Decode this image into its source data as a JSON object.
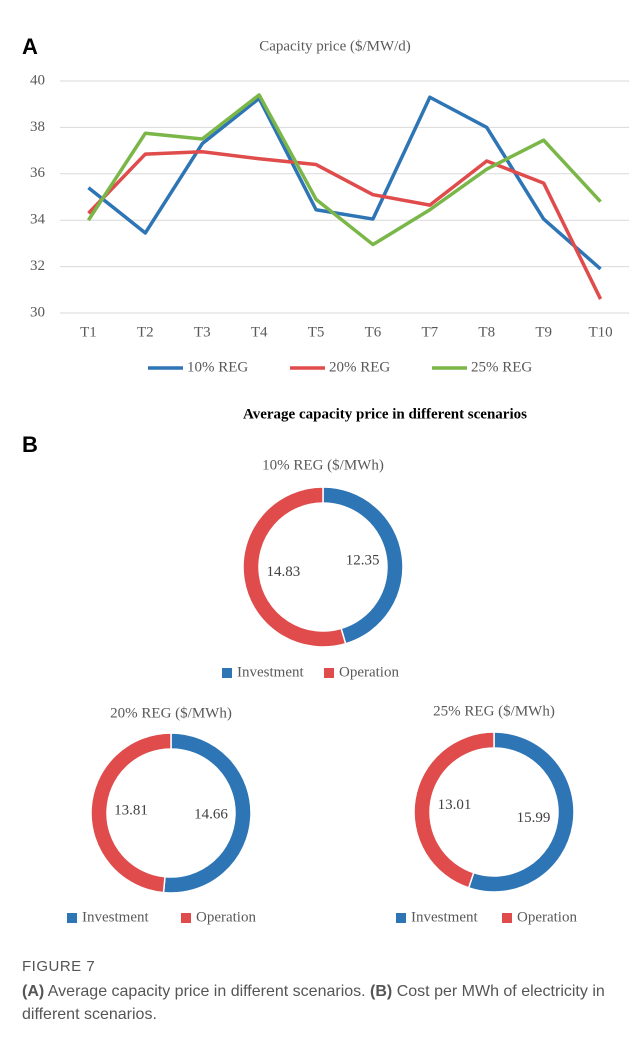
{
  "panels": [
    "A",
    "B"
  ],
  "caption": {
    "label": "FIGURE 7",
    "parts": [
      "(A)",
      "Average capacity price in different scenarios.",
      "(B)",
      "Cost per MWh of electricity in different scenarios."
    ]
  },
  "chart_data": [
    {
      "type": "line",
      "title": "Capacity price ($/MW/d)",
      "subtitle": "Average capacity price in different scenarios",
      "categories": [
        "T1",
        "T2",
        "T3",
        "T4",
        "T5",
        "T6",
        "T7",
        "T8",
        "T9",
        "T10"
      ],
      "series": [
        {
          "name": "10% REG",
          "color": "#2e75b6",
          "values": [
            35.4,
            33.45,
            37.3,
            39.25,
            34.45,
            34.05,
            39.3,
            38.0,
            34.05,
            31.9
          ]
        },
        {
          "name": "20% REG",
          "color": "#e04b4b",
          "values": [
            34.3,
            36.85,
            36.95,
            36.65,
            36.4,
            35.1,
            34.65,
            36.55,
            35.6,
            30.6
          ]
        },
        {
          "name": "25% REG",
          "color": "#7ab648",
          "values": [
            34.0,
            37.75,
            37.5,
            39.4,
            34.9,
            32.95,
            34.45,
            36.2,
            37.45,
            34.8
          ]
        }
      ],
      "ylim": [
        30,
        40
      ],
      "yticks": [
        30,
        32,
        34,
        36,
        38,
        40
      ],
      "grid": true,
      "legend": "bottom"
    },
    {
      "type": "donut",
      "title": "10% REG ($/MWh)",
      "categories": [
        "Investment",
        "Operation"
      ],
      "values": [
        12.35,
        14.83
      ],
      "colors": [
        "#2e75b6",
        "#e04b4b"
      ],
      "legend": "bottom"
    },
    {
      "type": "donut",
      "title": "20% REG ($/MWh)",
      "categories": [
        "Investment",
        "Operation"
      ],
      "values": [
        14.66,
        13.81
      ],
      "colors": [
        "#2e75b6",
        "#e04b4b"
      ],
      "legend": "bottom"
    },
    {
      "type": "donut",
      "title": "25% REG ($/MWh)",
      "categories": [
        "Investment",
        "Operation"
      ],
      "values": [
        15.99,
        13.01
      ],
      "colors": [
        "#2e75b6",
        "#e04b4b"
      ],
      "legend": "bottom"
    }
  ]
}
